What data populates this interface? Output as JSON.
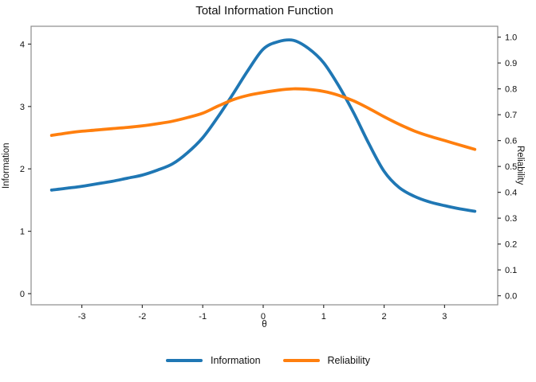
{
  "title": "Total Information Function",
  "colors": {
    "information": "#1f77b4",
    "reliability": "#ff7f0e",
    "plot_border": "#8c8c8c",
    "tick": "#333333",
    "background": "#ffffff"
  },
  "legend": {
    "items": [
      {
        "label": "Information",
        "color": "#1f77b4"
      },
      {
        "label": "Reliability",
        "color": "#ff7f0e"
      }
    ]
  },
  "chart_data": {
    "type": "line",
    "title": "Total Information Function",
    "grid": false,
    "legend_position": "bottom",
    "x": [
      -3.5,
      -3.25,
      -3.0,
      -2.75,
      -2.5,
      -2.25,
      -2.0,
      -1.75,
      -1.5,
      -1.25,
      -1.0,
      -0.75,
      -0.5,
      -0.25,
      0.0,
      0.25,
      0.5,
      0.75,
      1.0,
      1.25,
      1.5,
      1.75,
      2.0,
      2.25,
      2.5,
      2.75,
      3.0,
      3.25,
      3.5
    ],
    "series": [
      {
        "name": "Information",
        "axis": "left",
        "color": "#1f77b4",
        "values": [
          1.66,
          1.69,
          1.72,
          1.76,
          1.8,
          1.85,
          1.9,
          1.98,
          2.08,
          2.26,
          2.5,
          2.83,
          3.2,
          3.58,
          3.92,
          4.04,
          4.06,
          3.93,
          3.7,
          3.33,
          2.89,
          2.4,
          1.96,
          1.7,
          1.56,
          1.47,
          1.41,
          1.36,
          1.32
        ]
      },
      {
        "name": "Reliability",
        "axis": "right",
        "color": "#ff7f0e",
        "values": [
          0.62,
          0.629,
          0.636,
          0.641,
          0.646,
          0.651,
          0.657,
          0.665,
          0.675,
          0.689,
          0.706,
          0.733,
          0.758,
          0.775,
          0.786,
          0.795,
          0.8,
          0.798,
          0.79,
          0.775,
          0.753,
          0.724,
          0.692,
          0.663,
          0.637,
          0.617,
          0.6,
          0.583,
          0.566
        ]
      }
    ],
    "x_axis": {
      "label": "θ",
      "range": [
        -3.839,
        3.879
      ],
      "tick_values": [
        -3,
        -2,
        -1,
        0,
        1,
        2,
        3
      ],
      "tick_labels": [
        "-3",
        "-2",
        "-1",
        "0",
        "1",
        "2",
        "3"
      ]
    },
    "y_axis_left": {
      "label": "Information",
      "range": [
        -0.179,
        4.286
      ],
      "tick_values": [
        0,
        1,
        2,
        3,
        4
      ],
      "tick_labels": [
        "0",
        "1",
        "2",
        "3",
        "4"
      ]
    },
    "y_axis_right": {
      "label": "Reliability",
      "range": [
        -0.035,
        1.042
      ],
      "tick_values": [
        0.0,
        0.1,
        0.2,
        0.3,
        0.4,
        0.5,
        0.6,
        0.7,
        0.8,
        0.9,
        1.0
      ],
      "tick_labels": [
        "0.0",
        "0.1",
        "0.2",
        "0.3",
        "0.4",
        "0.5",
        "0.6",
        "0.7",
        "0.8",
        "0.9",
        "1.0"
      ]
    }
  }
}
